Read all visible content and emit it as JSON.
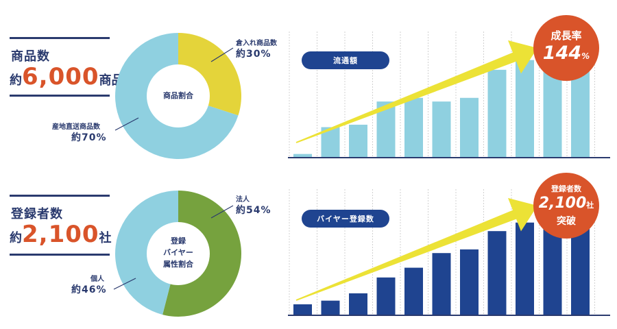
{
  "colors": {
    "navy": "#2a3a6e",
    "accent_orange": "#d9542a",
    "pie_yellow": "#e4d43a",
    "pie_lightblue": "#8fd0e0",
    "pie_green": "#76a23e",
    "bar_lightblue": "#8fd0e0",
    "bar_navy": "#1f4490",
    "arrow_yellow": "#ece236",
    "pill_navy": "#1f4490",
    "badge_orange": "#d9542a",
    "grid_line": "#d0d0d0"
  },
  "products": {
    "label": "商品数",
    "value_prefix": "約",
    "value_number": "6,000",
    "value_suffix": "商品",
    "donut_center": "商品割合",
    "callout_top_small": "倉入れ商品数",
    "callout_top_big": "約30%",
    "callout_bottom_small": "産地直送商品数",
    "callout_bottom_big": "約70%",
    "pill_label": "流通額",
    "badge_line1": "成長率",
    "badge_line2": "144",
    "badge_unit": "%"
  },
  "buyers": {
    "label": "登録者数",
    "value_prefix": "約",
    "value_number": "2,100",
    "value_suffix": "社",
    "donut_center_1": "登録",
    "donut_center_2": "バイヤー",
    "donut_center_3": "属性割合",
    "callout_top_small": "法人",
    "callout_top_big": "約54%",
    "callout_bottom_small": "個人",
    "callout_bottom_big": "約46%",
    "pill_label": "バイヤー登録数",
    "badge_line1": "登録者数",
    "badge_line2": "2,100",
    "badge_unit": "社",
    "badge_line3": "突破"
  },
  "chart_data": [
    {
      "type": "pie",
      "center_label": "商品割合",
      "slices": [
        {
          "label": "倉入れ商品数",
          "value": 30
        },
        {
          "label": "産地直送商品数",
          "value": 70
        }
      ]
    },
    {
      "type": "bar",
      "pill_label": "流通額",
      "values": [
        3,
        25,
        27,
        46,
        49,
        46,
        49,
        72,
        80,
        90,
        95
      ],
      "ylim": [
        0,
        100
      ],
      "grid": true
    },
    {
      "type": "pie",
      "center_label": "登録 バイヤー 属性割合",
      "slices": [
        {
          "label": "法人",
          "value": 54
        },
        {
          "label": "個人",
          "value": 46
        }
      ]
    },
    {
      "type": "bar",
      "pill_label": "バイヤー登録数",
      "values": [
        9,
        12,
        18,
        31,
        39,
        51,
        54,
        69,
        76,
        86,
        100
      ],
      "ylim": [
        0,
        100
      ],
      "grid": true
    }
  ]
}
